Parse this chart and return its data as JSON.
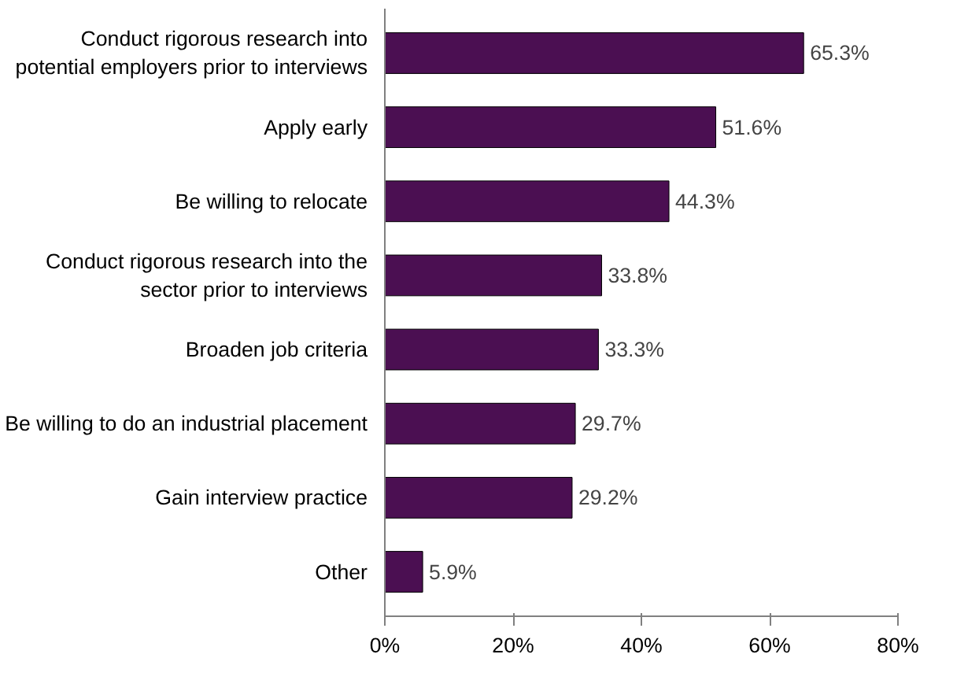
{
  "chart_data": {
    "type": "bar",
    "orientation": "horizontal",
    "categories": [
      "Conduct rigorous research into\npotential employers prior to interviews",
      "Apply early",
      "Be willing to relocate",
      "Conduct rigorous research into the\nsector prior to interviews",
      "Broaden job criteria",
      "Be willing to do an industrial placement",
      "Gain interview practice",
      "Other"
    ],
    "values": [
      65.3,
      51.6,
      44.3,
      33.8,
      33.3,
      29.7,
      29.2,
      5.9
    ],
    "value_labels": [
      "65.3%",
      "51.6%",
      "44.3%",
      "33.8%",
      "33.3%",
      "29.7%",
      "29.2%",
      "5.9%"
    ],
    "color": "#4b0f52",
    "xlim": [
      0,
      80
    ],
    "xticks": [
      {
        "value": 0,
        "label": "0%"
      },
      {
        "value": 20,
        "label": "20%"
      },
      {
        "value": 40,
        "label": "40%"
      },
      {
        "value": 60,
        "label": "60%"
      },
      {
        "value": 80,
        "label": "80%"
      }
    ],
    "grid": false
  }
}
